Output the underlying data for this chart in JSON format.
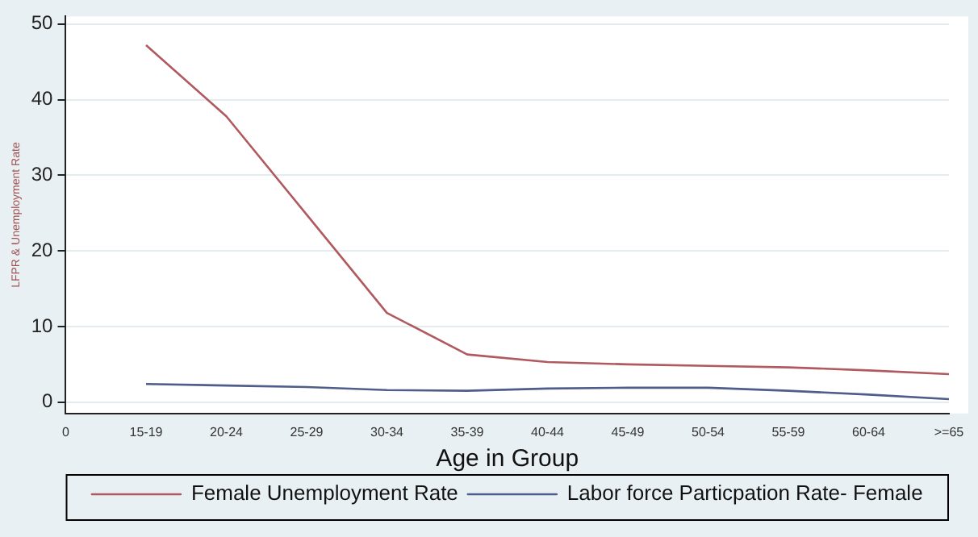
{
  "chart_data": {
    "type": "line",
    "xlabel": "Age in Group",
    "ylabel": "LFPR & Unemployment Rate",
    "categories": [
      "0",
      "15-19",
      "20-24",
      "25-29",
      "30-34",
      "35-39",
      "40-44",
      "45-49",
      "50-54",
      "55-59",
      "60-64",
      ">=65"
    ],
    "series": [
      {
        "name": "Female Unemployment Rate",
        "color": "#b05a5f",
        "values": [
          null,
          47.2,
          37.8,
          24.8,
          11.8,
          6.3,
          5.3,
          5.0,
          4.8,
          4.6,
          4.2,
          3.7
        ]
      },
      {
        "name": "Labor force Particpation Rate- Female",
        "color": "#4f5d8a",
        "values": [
          null,
          2.4,
          2.2,
          2.0,
          1.6,
          1.5,
          1.8,
          1.9,
          1.9,
          1.5,
          1.0,
          0.4
        ]
      }
    ],
    "ylim": [
      -1.5,
      51
    ],
    "yticks": [
      0,
      10,
      20,
      30,
      40,
      50
    ],
    "grid": "y",
    "legend": "bottom",
    "marker": "none",
    "line_style": "solid"
  }
}
